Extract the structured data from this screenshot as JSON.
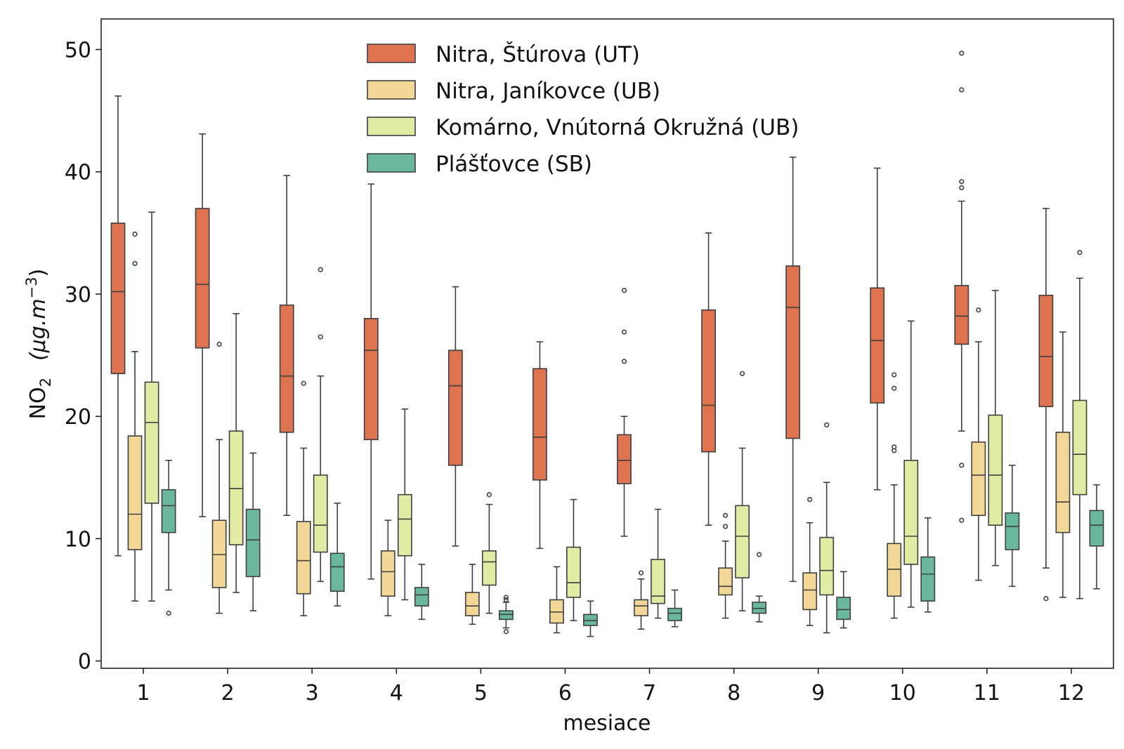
{
  "chart_data": {
    "type": "box",
    "xlabel": "mesiace",
    "ylabel_main": "NO",
    "ylabel_sub": "2",
    "ylabel_unit": "(μg.m",
    "ylabel_exp": "−3",
    "ylabel_close": ")",
    "ylim": [
      -0.6,
      52.5
    ],
    "yticks": [
      0,
      10,
      20,
      30,
      40,
      50
    ],
    "categories": [
      "1",
      "2",
      "3",
      "4",
      "5",
      "6",
      "7",
      "8",
      "9",
      "10",
      "11",
      "12"
    ],
    "legend_position": "top-center",
    "series": [
      {
        "name": "Nitra, Štúrova (UT)",
        "color": "#e0734f",
        "boxes": [
          {
            "min": 8.6,
            "q1": 23.5,
            "median": 30.2,
            "q3": 35.8,
            "max": 46.2,
            "outliers": []
          },
          {
            "min": 11.8,
            "q1": 25.6,
            "median": 30.8,
            "q3": 37.0,
            "max": 43.1,
            "outliers": []
          },
          {
            "min": 11.9,
            "q1": 18.7,
            "median": 23.3,
            "q3": 29.1,
            "max": 39.7,
            "outliers": []
          },
          {
            "min": 6.7,
            "q1": 18.1,
            "median": 25.4,
            "q3": 28.0,
            "max": 39.0,
            "outliers": []
          },
          {
            "min": 9.4,
            "q1": 16.0,
            "median": 22.5,
            "q3": 25.4,
            "max": 30.6,
            "outliers": []
          },
          {
            "min": 9.2,
            "q1": 14.8,
            "median": 18.3,
            "q3": 23.9,
            "max": 26.1,
            "outliers": []
          },
          {
            "min": 10.2,
            "q1": 14.5,
            "median": 16.4,
            "q3": 18.5,
            "max": 20.0,
            "outliers": [
              24.5,
              26.9,
              30.3
            ]
          },
          {
            "min": 11.1,
            "q1": 17.1,
            "median": 20.9,
            "q3": 28.7,
            "max": 35.0,
            "outliers": []
          },
          {
            "min": 6.5,
            "q1": 18.2,
            "median": 28.9,
            "q3": 32.3,
            "max": 41.2,
            "outliers": []
          },
          {
            "min": 14.0,
            "q1": 21.1,
            "median": 26.2,
            "q3": 30.5,
            "max": 40.3,
            "outliers": []
          },
          {
            "min": 18.8,
            "q1": 25.9,
            "median": 28.2,
            "q3": 30.7,
            "max": 37.6,
            "outliers": [
              11.5,
              16.0,
              38.7,
              39.2,
              46.7,
              49.7
            ]
          },
          {
            "min": 7.6,
            "q1": 20.8,
            "median": 24.9,
            "q3": 29.9,
            "max": 37.0,
            "outliers": [
              5.1
            ]
          }
        ]
      },
      {
        "name": "Nitra, Janíkovce (UB)",
        "color": "#f2d796",
        "boxes": [
          {
            "min": 4.9,
            "q1": 9.1,
            "median": 12.0,
            "q3": 18.4,
            "max": 25.3,
            "outliers": [
              32.5,
              34.9
            ]
          },
          {
            "min": 3.9,
            "q1": 6.0,
            "median": 8.7,
            "q3": 11.5,
            "max": 18.1,
            "outliers": [
              25.9
            ]
          },
          {
            "min": 3.7,
            "q1": 5.5,
            "median": 8.2,
            "q3": 11.4,
            "max": 17.4,
            "outliers": [
              22.7
            ]
          },
          {
            "min": 3.7,
            "q1": 5.3,
            "median": 7.3,
            "q3": 9.0,
            "max": 11.5,
            "outliers": []
          },
          {
            "min": 3.0,
            "q1": 3.7,
            "median": 4.5,
            "q3": 5.6,
            "max": 7.9,
            "outliers": []
          },
          {
            "min": 2.3,
            "q1": 3.1,
            "median": 4.0,
            "q3": 5.0,
            "max": 7.7,
            "outliers": []
          },
          {
            "min": 2.6,
            "q1": 3.7,
            "median": 4.5,
            "q3": 5.0,
            "max": 6.7,
            "outliers": [
              7.2
            ]
          },
          {
            "min": 3.5,
            "q1": 5.4,
            "median": 6.1,
            "q3": 7.6,
            "max": 9.8,
            "outliers": [
              11.0,
              11.9
            ]
          },
          {
            "min": 2.9,
            "q1": 4.2,
            "median": 5.8,
            "q3": 7.2,
            "max": 11.3,
            "outliers": [
              13.2
            ]
          },
          {
            "min": 3.5,
            "q1": 5.3,
            "median": 7.5,
            "q3": 9.6,
            "max": 14.4,
            "outliers": [
              17.2,
              17.5,
              22.3,
              23.4
            ]
          },
          {
            "min": 6.6,
            "q1": 11.9,
            "median": 15.2,
            "q3": 17.9,
            "max": 26.1,
            "outliers": [
              28.7
            ]
          },
          {
            "min": 5.2,
            "q1": 10.5,
            "median": 13.0,
            "q3": 18.7,
            "max": 26.9,
            "outliers": []
          }
        ]
      },
      {
        "name": "Komárno, Vnútorná Okružná (UB)",
        "color": "#e1eba4",
        "boxes": [
          {
            "min": 4.9,
            "q1": 12.9,
            "median": 19.5,
            "q3": 22.8,
            "max": 36.7,
            "outliers": []
          },
          {
            "min": 5.6,
            "q1": 9.5,
            "median": 14.1,
            "q3": 18.8,
            "max": 28.4,
            "outliers": []
          },
          {
            "min": 6.5,
            "q1": 8.9,
            "median": 11.1,
            "q3": 15.2,
            "max": 23.3,
            "outliers": [
              26.5,
              32.0
            ]
          },
          {
            "min": 5.0,
            "q1": 8.6,
            "median": 11.6,
            "q3": 13.6,
            "max": 20.6,
            "outliers": []
          },
          {
            "min": 3.9,
            "q1": 6.2,
            "median": 8.1,
            "q3": 9.0,
            "max": 12.8,
            "outliers": [
              13.6
            ]
          },
          {
            "min": 3.3,
            "q1": 5.2,
            "median": 6.4,
            "q3": 9.3,
            "max": 13.2,
            "outliers": []
          },
          {
            "min": 3.5,
            "q1": 4.7,
            "median": 5.3,
            "q3": 8.3,
            "max": 12.4,
            "outliers": []
          },
          {
            "min": 4.1,
            "q1": 6.8,
            "median": 10.2,
            "q3": 12.7,
            "max": 17.4,
            "outliers": [
              23.5
            ]
          },
          {
            "min": 2.3,
            "q1": 5.4,
            "median": 7.4,
            "q3": 10.1,
            "max": 14.6,
            "outliers": [
              19.3
            ]
          },
          {
            "min": 4.4,
            "q1": 7.9,
            "median": 10.2,
            "q3": 16.4,
            "max": 27.8,
            "outliers": []
          },
          {
            "min": 7.8,
            "q1": 11.1,
            "median": 15.2,
            "q3": 20.1,
            "max": 30.3,
            "outliers": []
          },
          {
            "min": 5.1,
            "q1": 13.6,
            "median": 16.9,
            "q3": 21.3,
            "max": 31.3,
            "outliers": [
              33.4
            ]
          }
        ]
      },
      {
        "name": "Plášťovce (SB)",
        "color": "#6ab89c",
        "boxes": [
          {
            "min": 5.8,
            "q1": 10.5,
            "median": 12.7,
            "q3": 14.0,
            "max": 16.4,
            "outliers": [
              3.9
            ]
          },
          {
            "min": 4.1,
            "q1": 6.9,
            "median": 9.9,
            "q3": 12.4,
            "max": 17.0,
            "outliers": []
          },
          {
            "min": 4.5,
            "q1": 5.7,
            "median": 7.7,
            "q3": 8.8,
            "max": 12.9,
            "outliers": []
          },
          {
            "min": 3.4,
            "q1": 4.5,
            "median": 5.4,
            "q3": 6.0,
            "max": 7.9,
            "outliers": []
          },
          {
            "min": 2.7,
            "q1": 3.4,
            "median": 3.8,
            "q3": 4.1,
            "max": 4.8,
            "outliers": [
              2.4,
              5.0,
              5.2
            ]
          },
          {
            "min": 2.0,
            "q1": 2.9,
            "median": 3.3,
            "q3": 3.8,
            "max": 4.9,
            "outliers": []
          },
          {
            "min": 2.8,
            "q1": 3.3,
            "median": 3.9,
            "q3": 4.3,
            "max": 5.8,
            "outliers": []
          },
          {
            "min": 3.2,
            "q1": 3.9,
            "median": 4.3,
            "q3": 4.8,
            "max": 5.3,
            "outliers": [
              8.7
            ]
          },
          {
            "min": 2.7,
            "q1": 3.4,
            "median": 4.2,
            "q3": 5.2,
            "max": 7.3,
            "outliers": []
          },
          {
            "min": 4.0,
            "q1": 4.9,
            "median": 7.1,
            "q3": 8.5,
            "max": 11.7,
            "outliers": []
          },
          {
            "min": 6.1,
            "q1": 9.1,
            "median": 11.0,
            "q3": 12.1,
            "max": 16.0,
            "outliers": []
          },
          {
            "min": 5.9,
            "q1": 9.4,
            "median": 11.1,
            "q3": 12.3,
            "max": 14.4,
            "outliers": []
          }
        ]
      }
    ]
  }
}
